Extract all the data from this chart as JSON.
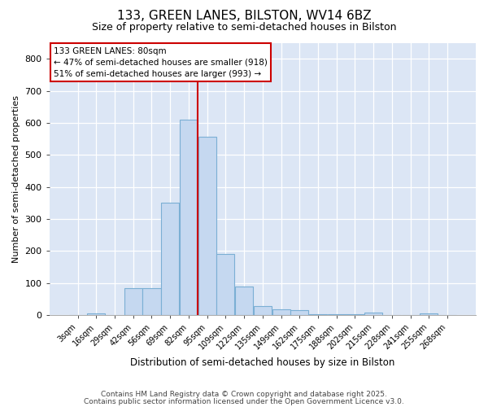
{
  "title1": "133, GREEN LANES, BILSTON, WV14 6BZ",
  "title2": "Size of property relative to semi-detached houses in Bilston",
  "xlabel": "Distribution of semi-detached houses by size in Bilston",
  "ylabel": "Number of semi-detached properties",
  "categories": [
    "3sqm",
    "16sqm",
    "29sqm",
    "42sqm",
    "56sqm",
    "69sqm",
    "82sqm",
    "95sqm",
    "109sqm",
    "122sqm",
    "135sqm",
    "149sqm",
    "162sqm",
    "175sqm",
    "188sqm",
    "202sqm",
    "215sqm",
    "228sqm",
    "241sqm",
    "255sqm",
    "268sqm"
  ],
  "values": [
    0,
    5,
    0,
    83,
    83,
    352,
    610,
    557,
    190,
    90,
    28,
    18,
    15,
    4,
    4,
    4,
    8,
    0,
    0,
    5,
    0
  ],
  "bar_color": "#c5d8f0",
  "bar_edge_color": "#7bafd4",
  "vline_index": 6,
  "vline_color": "#cc0000",
  "annotation_text": "133 GREEN LANES: 80sqm\n← 47% of semi-detached houses are smaller (918)\n51% of semi-detached houses are larger (993) →",
  "annotation_box_color": "#ffffff",
  "annotation_box_edge": "#cc0000",
  "ylim": [
    0,
    850
  ],
  "yticks": [
    0,
    100,
    200,
    300,
    400,
    500,
    600,
    700,
    800
  ],
  "fig_bg": "#ffffff",
  "plot_background": "#dce6f5",
  "footnote1": "Contains HM Land Registry data © Crown copyright and database right 2025.",
  "footnote2": "Contains public sector information licensed under the Open Government Licence v3.0."
}
